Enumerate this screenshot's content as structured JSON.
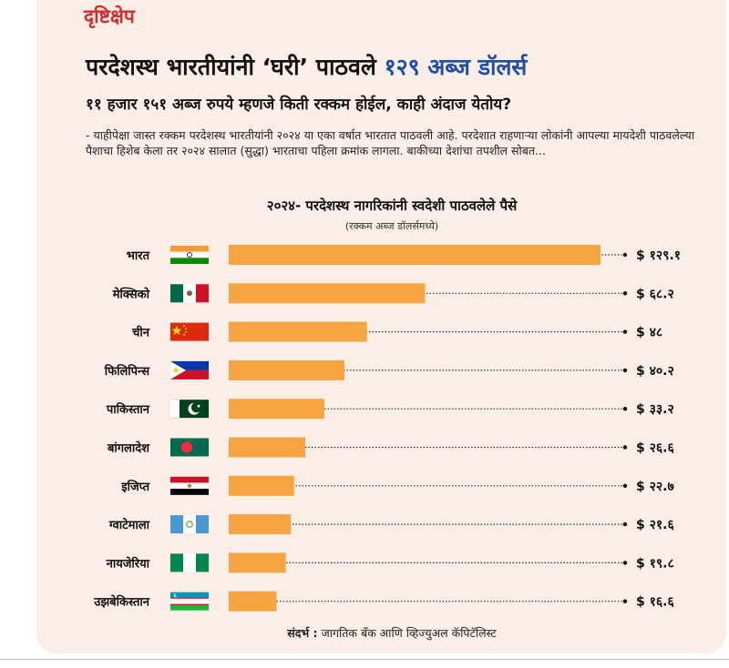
{
  "kicker": "दृष्टिक्षेप",
  "headline": {
    "main": "परदेशस्थ भारतीयांनी ‘घरी’ पाठवले ",
    "accent": "१२९ अब्ज डॉलर्स"
  },
  "subhead": "११ हजार १५१ अब्ज रुपये म्हणजे किती रक्कम होईल, काही अंदाज येतोय?",
  "body": "- याहीपेक्षा जास्त रक्कम परदेशस्थ भारतीयांनी २०२४ या एका वर्षात भारतात  पाठवली आहे. परदेशात राहणाऱ्या  लोकांनी आपल्या मायदेशी पाठवलेल्या पैशाचा हिशेब केला तर २०२४ सालात (सुद्धा) भारताचा पहिला क्रमांक लागला. बाकीच्या देशांचा तपशील सोबत...",
  "source": {
    "label": "संदर्भ :",
    "text": " जागतिक बँक आणि व्हिज्युअल कॅपिटॅलिस्ट"
  },
  "colors": {
    "bar": "#f7a443",
    "accent": "#1f4fa3",
    "kicker": "#d72b2b",
    "background": "#fbeee6"
  },
  "chart_data": {
    "type": "bar",
    "orientation": "horizontal",
    "title": "२०२४- परदेशस्थ नागरिकांनी स्वदेशी पाठवलेले पैसे",
    "unit_label": "(रक्कम अब्ज डॉलर्समध्ये)",
    "categories": [
      "भारत",
      "मेक्सिको",
      "चीन",
      "फिलिपिन्स",
      "पाकिस्तान",
      "बांगलादेश",
      "इजिप्त",
      "ग्वाटेमाला",
      "नायजेरिया",
      "उझबेकिस्तान"
    ],
    "flags": [
      "india-flag-icon",
      "mexico-flag-icon",
      "china-flag-icon",
      "philippines-flag-icon",
      "pakistan-flag-icon",
      "bangladesh-flag-icon",
      "egypt-flag-icon",
      "guatemala-flag-icon",
      "nigeria-flag-icon",
      "uzbekistan-flag-icon"
    ],
    "values": [
      129.1,
      68.2,
      48,
      40.2,
      33.2,
      26.6,
      22.7,
      21.6,
      19.8,
      16.6
    ],
    "value_labels": [
      "$ १२९.१",
      "$ ६८.२",
      "$ ४८",
      "$ ४०.२",
      "$ ३३.२",
      "$ २६.६",
      "$ २२.७",
      "$ २१.६",
      "$ १९.८",
      "$ १६.६"
    ],
    "xlim": [
      0,
      129.1
    ],
    "grid": false,
    "legend": "none"
  }
}
